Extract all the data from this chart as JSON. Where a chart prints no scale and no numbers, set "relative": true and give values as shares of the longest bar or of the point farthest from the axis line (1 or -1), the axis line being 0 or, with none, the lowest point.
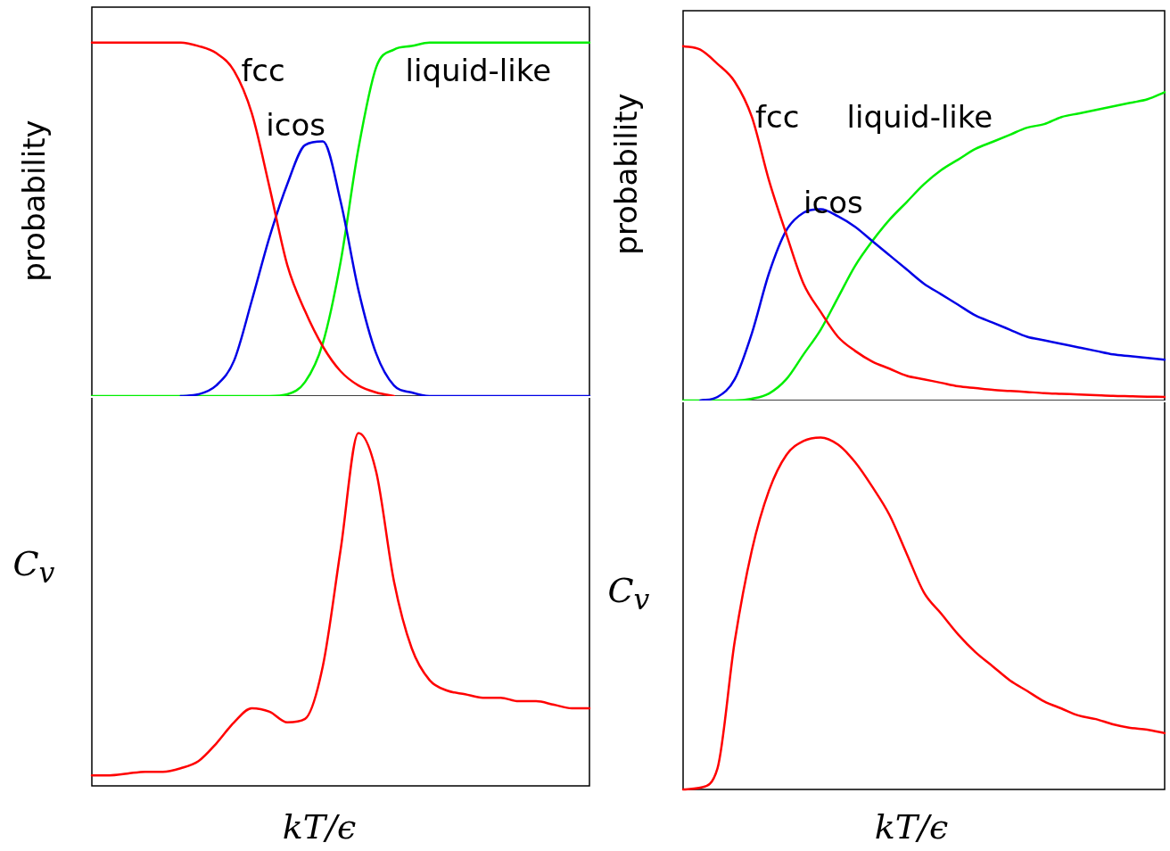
{
  "chart_data": [
    {
      "type": "line",
      "relative": true,
      "ylabel": "probability",
      "categories": [
        null,
        null,
        null,
        null,
        null,
        null,
        null,
        null,
        null,
        null,
        null,
        null,
        null,
        null,
        null,
        null,
        null,
        null,
        null,
        null,
        null,
        null,
        null,
        null,
        null,
        null,
        null,
        null,
        null
      ],
      "series": [
        {
          "name": "fcc",
          "color": "#ff0000",
          "values": [
            1,
            1,
            1,
            1,
            1,
            1,
            0.99,
            0.97,
            0.92,
            0.8,
            0.59,
            0.37,
            0.24,
            0.14,
            0.07,
            0.03,
            0.01,
            0,
            null,
            null,
            null,
            null,
            null,
            null,
            null,
            null,
            null,
            null,
            null
          ]
        },
        {
          "name": "icos",
          "color": "#0000e6",
          "values": [
            null,
            null,
            null,
            null,
            null,
            0,
            0.005,
            0.03,
            0.1,
            0.27,
            0.45,
            0.6,
            0.71,
            0.72,
            0.55,
            0.3,
            0.12,
            0.03,
            0.01,
            0,
            0,
            0,
            0,
            0,
            0,
            0,
            0,
            0,
            0
          ]
        },
        {
          "name": "liquid-like",
          "color": "#00ee00",
          "values": [
            0,
            0,
            0,
            0,
            0,
            0,
            0,
            0,
            0,
            0,
            0,
            0.005,
            0.04,
            0.15,
            0.38,
            0.7,
            0.93,
            0.98,
            0.99,
            1,
            1,
            1,
            1,
            1,
            1,
            1,
            1,
            1,
            1
          ]
        }
      ]
    },
    {
      "type": "line",
      "relative": true,
      "ylabel": "C$_{v}$",
      "xlabel": "kT/ϵ",
      "categories": [
        null,
        null,
        null,
        null,
        null,
        null,
        null,
        null,
        null,
        null,
        null,
        null,
        null,
        null,
        null,
        null,
        null,
        null,
        null,
        null,
        null,
        null,
        null,
        null,
        null,
        null,
        null,
        null,
        null
      ],
      "series": [
        {
          "color": "#ff0000",
          "values": [
            0.03,
            0.03,
            0.035,
            0.04,
            0.04,
            0.05,
            0.07,
            0.12,
            0.18,
            0.22,
            0.21,
            0.18,
            0.19,
            0.34,
            0.67,
            1,
            0.89,
            0.58,
            0.39,
            0.3,
            0.27,
            0.26,
            0.25,
            0.25,
            0.24,
            0.24,
            0.23,
            0.22,
            0.22
          ]
        }
      ]
    },
    {
      "type": "line",
      "relative": true,
      "ylabel": "probability",
      "categories": [
        null,
        null,
        null,
        null,
        null,
        null,
        null,
        null,
        null,
        null,
        null,
        null,
        null,
        null,
        null,
        null,
        null,
        null,
        null,
        null,
        null,
        null,
        null,
        null,
        null,
        null,
        null,
        null,
        null
      ],
      "series": [
        {
          "name": "fcc",
          "color": "#ff0000",
          "values": [
            1,
            0.99,
            0.95,
            0.9,
            0.8,
            0.62,
            0.47,
            0.33,
            0.25,
            0.18,
            0.14,
            0.11,
            0.09,
            0.07,
            0.06,
            0.05,
            0.04,
            0.035,
            0.03,
            0.027,
            0.024,
            0.021,
            0.019,
            0.017,
            0.015,
            0.013,
            0.012,
            0.011,
            0.01
          ]
        },
        {
          "name": "icos",
          "color": "#0000e6",
          "values": [
            null,
            0,
            0.01,
            0.06,
            0.19,
            0.36,
            0.48,
            0.53,
            0.54,
            0.52,
            0.49,
            0.45,
            0.41,
            0.37,
            0.33,
            0.3,
            0.27,
            0.24,
            0.22,
            0.2,
            0.18,
            0.17,
            0.16,
            0.15,
            0.14,
            0.13,
            0.125,
            0.12,
            0.115
          ]
        },
        {
          "name": "liquid-like",
          "color": "#00ee00",
          "values": [
            0,
            0,
            0,
            0,
            0.005,
            0.02,
            0.06,
            0.13,
            0.2,
            0.29,
            0.38,
            0.45,
            0.51,
            0.56,
            0.61,
            0.65,
            0.68,
            0.71,
            0.73,
            0.75,
            0.77,
            0.78,
            0.8,
            0.81,
            0.82,
            0.83,
            0.84,
            0.85,
            0.87
          ]
        }
      ]
    },
    {
      "type": "line",
      "relative": true,
      "ylabel": "C$_{v}$",
      "xlabel": "kT/ϵ",
      "categories": [
        null,
        null,
        null,
        null,
        null,
        null,
        null,
        null,
        null,
        null,
        null,
        null,
        null,
        null,
        null,
        null,
        null,
        null,
        null,
        null,
        null,
        null,
        null,
        null,
        null,
        null,
        null,
        null,
        null
      ],
      "series": [
        {
          "color": "#ff0000",
          "values": [
            0,
            0.005,
            0.06,
            0.42,
            0.68,
            0.85,
            0.95,
            0.99,
            1,
            0.98,
            0.93,
            0.86,
            0.78,
            0.67,
            0.56,
            0.5,
            0.44,
            0.39,
            0.35,
            0.31,
            0.28,
            0.25,
            0.23,
            0.21,
            0.2,
            0.185,
            0.175,
            0.17,
            0.16
          ]
        }
      ]
    }
  ]
}
